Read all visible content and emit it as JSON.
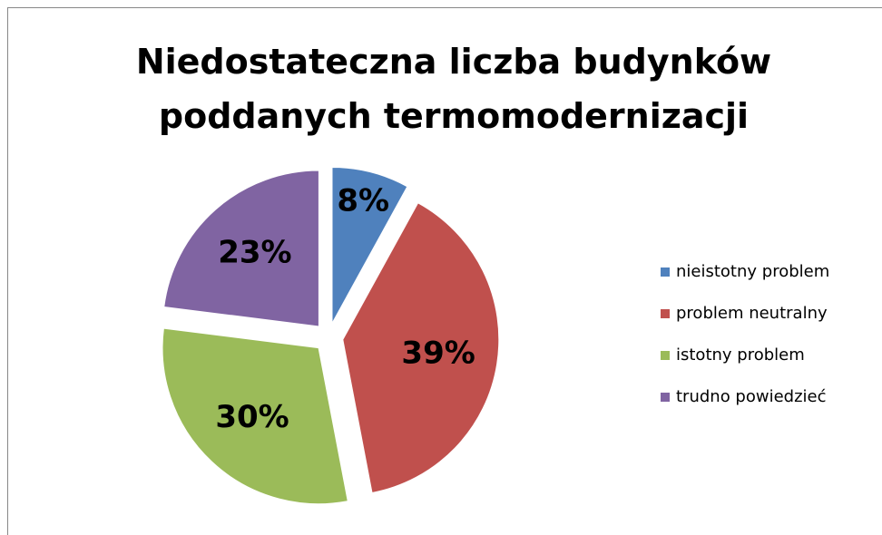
{
  "chart_data": {
    "type": "pie",
    "title": "Niedostateczna liczba budynków poddanych termomodernizacji",
    "categories": [
      "nieistotny problem",
      "problem neutralny",
      "istotny problem",
      "trudno powiedzieć"
    ],
    "values": [
      8,
      39,
      30,
      23
    ],
    "value_labels": [
      "8%",
      "39%",
      "30%",
      "23%"
    ],
    "colors": [
      "#4f81bd",
      "#c0504d",
      "#9bbb59",
      "#8064a2"
    ],
    "legend": "right"
  }
}
